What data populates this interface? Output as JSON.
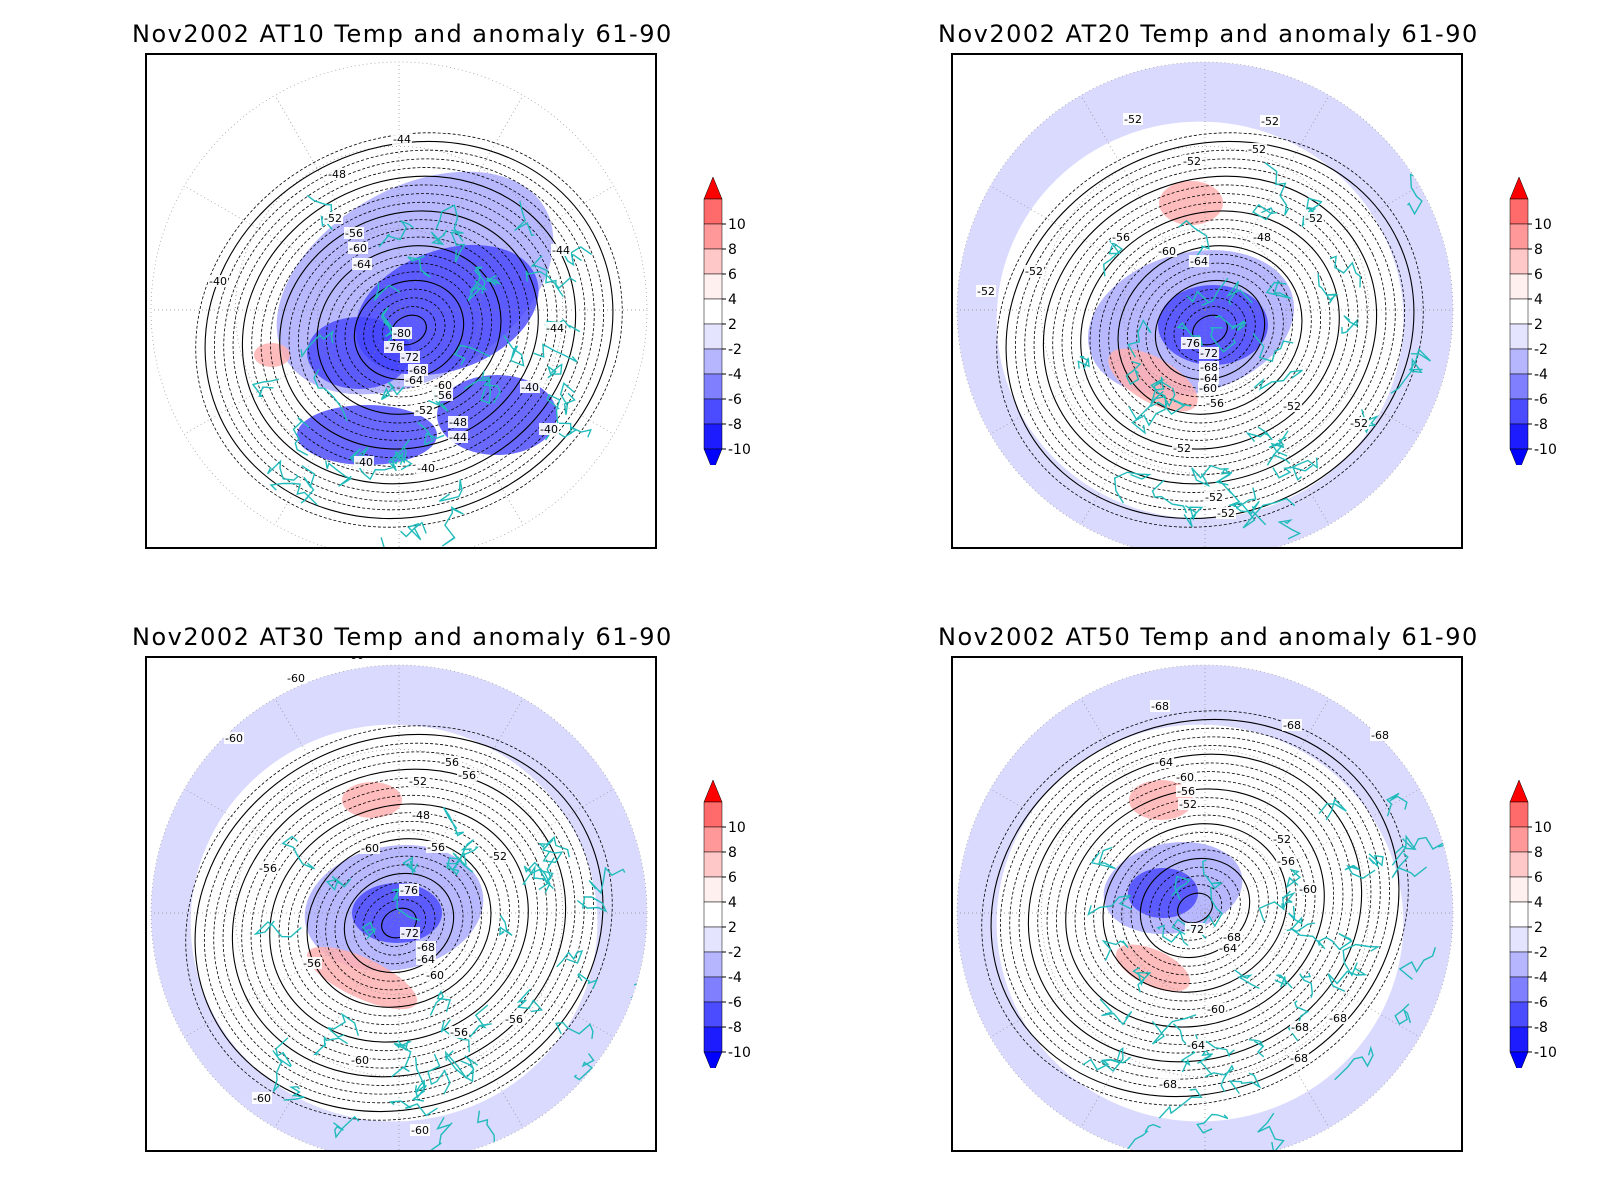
{
  "panels": [
    {
      "title": "Nov2002 AT10 Temp and anomaly 61-90",
      "background": "none",
      "labels": [
        "-40",
        "-44",
        "-48",
        "-52",
        "-56",
        "-60",
        "-64",
        "-80",
        "-76",
        "-72",
        "-68",
        "-64",
        "-60",
        "-56",
        "-52",
        "-48",
        "-44",
        "-40",
        "-40",
        "-40",
        "-44",
        "-44",
        "-40"
      ]
    },
    {
      "title": "Nov2002 AT20 Temp and anomaly 61-90",
      "background": "light-blue",
      "labels": [
        "-52",
        "-52",
        "-52",
        "-52",
        "-52",
        "-56",
        "-60",
        "-64",
        "-48",
        "-52",
        "-52",
        "-76",
        "-72",
        "-68",
        "-64",
        "-60",
        "-56",
        "-52",
        "-52",
        "-52",
        "-52",
        "-52"
      ]
    },
    {
      "title": "Nov2002 AT30 Temp and anomaly 61-90",
      "background": "light-blue",
      "labels": [
        "-60",
        "-60",
        "-60",
        "-56",
        "-52",
        "-56",
        "-48",
        "-60",
        "-56",
        "-52",
        "-56",
        "-76",
        "-72",
        "-68",
        "-64",
        "-60",
        "-56",
        "-56",
        "-56",
        "-60",
        "-60",
        "-60"
      ]
    },
    {
      "title": "Nov2002 AT50 Temp and anomaly 61-90",
      "background": "light-blue",
      "labels": [
        "-68",
        "-68",
        "-68",
        "-68",
        "-64",
        "-60",
        "-56",
        "-52",
        "-52",
        "-56",
        "-60",
        "-72",
        "-68",
        "-64",
        "-60",
        "-64",
        "-68",
        "-68",
        "-68",
        "-68"
      ]
    }
  ],
  "colorbar": {
    "ticks": [
      "10",
      "8",
      "6",
      "4",
      "2",
      "-2",
      "-4",
      "-6",
      "-8",
      "-10"
    ],
    "colors": [
      "#ff0000",
      "#ff6a6a",
      "#ff9999",
      "#ffc8c8",
      "#fff0f0",
      "#ffffff",
      "#e4e4ff",
      "#b6b6ff",
      "#8080ff",
      "#4b4bff",
      "#1c1cff",
      "#0000ff"
    ]
  }
}
